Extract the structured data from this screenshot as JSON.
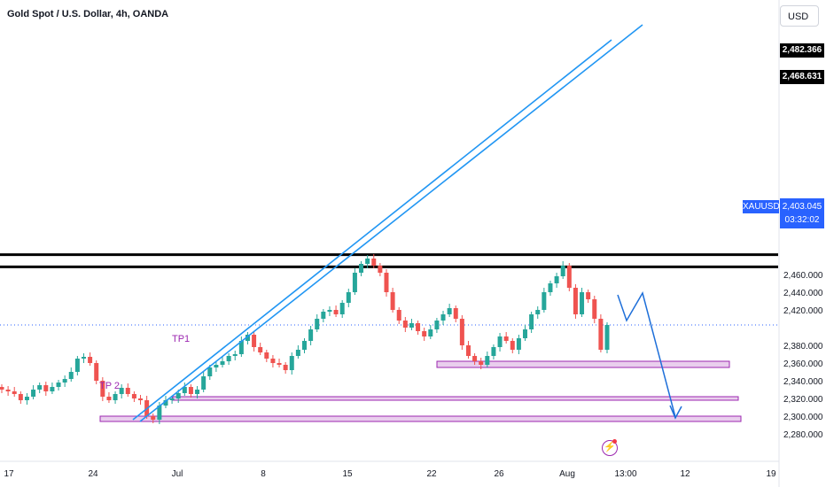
{
  "header": {
    "title": "Gold Spot / U.S. Dollar, 4h, OANDA",
    "currency": "USD"
  },
  "symbol": "XAUUSD",
  "current_price": "2,403.045",
  "countdown": "03:32:02",
  "levels": [
    "2,482.366",
    "2,468.631"
  ],
  "y_ticks": [
    "2,460.000",
    "2,440.000",
    "2,420.000",
    "2,380.000",
    "2,360.000",
    "2,340.000",
    "2,320.000",
    "2,300.000",
    "2,280.000"
  ],
  "x_ticks": [
    "17",
    "24",
    "Jul",
    "8",
    "15",
    "22",
    "26",
    "Aug",
    "13:00",
    "12",
    "19"
  ],
  "annotations": {
    "tp1": "TP1",
    "tp2": "TP 2"
  },
  "colors": {
    "up": "#26a69a",
    "down": "#ef5350",
    "zone": "#9c27b0",
    "trend": "#2196f3",
    "price": "#2962ff"
  },
  "chart_data": {
    "type": "candlestick",
    "title": "Gold Spot / U.S. Dollar, 4h, OANDA",
    "ylim": [
      2275,
      2492
    ],
    "x_tick_labels": [
      "17",
      "24",
      "Jul",
      "8",
      "15",
      "22",
      "26",
      "Aug",
      "13:00",
      "12",
      "19"
    ],
    "horizontal_levels": [
      2482.366,
      2468.631
    ],
    "last_price": 2403.045,
    "zones": [
      {
        "low": 2355,
        "high": 2362
      },
      {
        "low": 2318,
        "high": 2322
      },
      {
        "low": 2294,
        "high": 2300
      }
    ],
    "price_path_close": [
      2330,
      2328,
      2325,
      2318,
      2322,
      2330,
      2335,
      2328,
      2333,
      2338,
      2342,
      2350,
      2365,
      2367,
      2360,
      2340,
      2322,
      2318,
      2325,
      2332,
      2325,
      2320,
      2318,
      2300,
      2296,
      2312,
      2318,
      2320,
      2326,
      2333,
      2325,
      2330,
      2345,
      2355,
      2358,
      2362,
      2368,
      2370,
      2385,
      2392,
      2378,
      2372,
      2365,
      2360,
      2358,
      2352,
      2368,
      2375,
      2385,
      2398,
      2410,
      2418,
      2420,
      2415,
      2428,
      2440,
      2462,
      2472,
      2478,
      2470,
      2462,
      2440,
      2420,
      2408,
      2400,
      2405,
      2396,
      2390,
      2398,
      2408,
      2415,
      2422,
      2410,
      2380,
      2368,
      2362,
      2358,
      2368,
      2378,
      2390,
      2385,
      2375,
      2388,
      2398,
      2415,
      2420,
      2440,
      2450,
      2458,
      2470,
      2445,
      2415,
      2440,
      2432,
      2410,
      2375,
      2403
    ]
  }
}
